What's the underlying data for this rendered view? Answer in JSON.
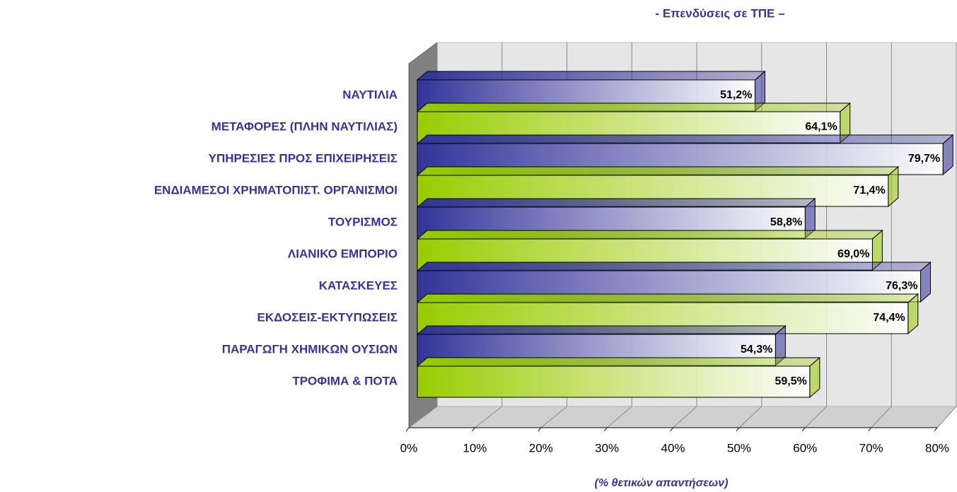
{
  "chart_data": {
    "type": "bar",
    "orientation": "horizontal",
    "title": "- Επενδύσεις σε ΤΠΕ –",
    "xlabel": "(% θετικών απαντήσεων)",
    "categories": [
      "ΝΑΥΤΙΛΙΑ",
      "ΜΕΤΑΦΟΡΕΣ (ΠΛΗΝ ΝΑΥΤΙΛΙΑΣ)",
      "ΥΠΗΡΕΣΙΕΣ ΠΡΟΣ ΕΠΙΧΕΙΡΗΣΕΙΣ",
      "ΕΝΔΙΑΜΕΣΟΙ ΧΡΗΜΑΤΟΠΙΣΤ. ΟΡΓΑΝΙΣΜΟΙ",
      "ΤΟΥΡΙΣΜΟΣ",
      "ΛΙΑΝΙΚΟ ΕΜΠΟΡΙΟ",
      "ΚΑΤΑΣΚΕΥΕΣ",
      "ΕΚΔΟΣΕΙΣ-ΕΚΤΥΠΩΣΕΙΣ",
      "ΠΑΡΑΓΩΓΗ ΧΗΜΙΚΩΝ ΟΥΣΙΩΝ",
      "ΤΡΟΦΙΜΑ & ΠΟΤΑ"
    ],
    "values": [
      51.2,
      64.1,
      79.7,
      71.4,
      58.8,
      69.0,
      76.3,
      74.4,
      54.3,
      59.5
    ],
    "value_labels": [
      "51,2%",
      "64,1%",
      "79,7%",
      "71,4%",
      "58,8%",
      "69,0%",
      "76,3%",
      "74,4%",
      "54,3%",
      "59,5%"
    ],
    "colors": [
      "#333399",
      "#99cc00"
    ],
    "xlim": [
      0,
      80
    ],
    "xticks": [
      {
        "value": 0,
        "label": "0%"
      },
      {
        "value": 10,
        "label": "10%"
      },
      {
        "value": 20,
        "label": "20%"
      },
      {
        "value": 30,
        "label": "30%"
      },
      {
        "value": 40,
        "label": "40%"
      },
      {
        "value": 50,
        "label": "50%"
      },
      {
        "value": 60,
        "label": "60%"
      },
      {
        "value": 70,
        "label": "70%"
      },
      {
        "value": 80,
        "label": "80%"
      }
    ],
    "grid": true
  }
}
